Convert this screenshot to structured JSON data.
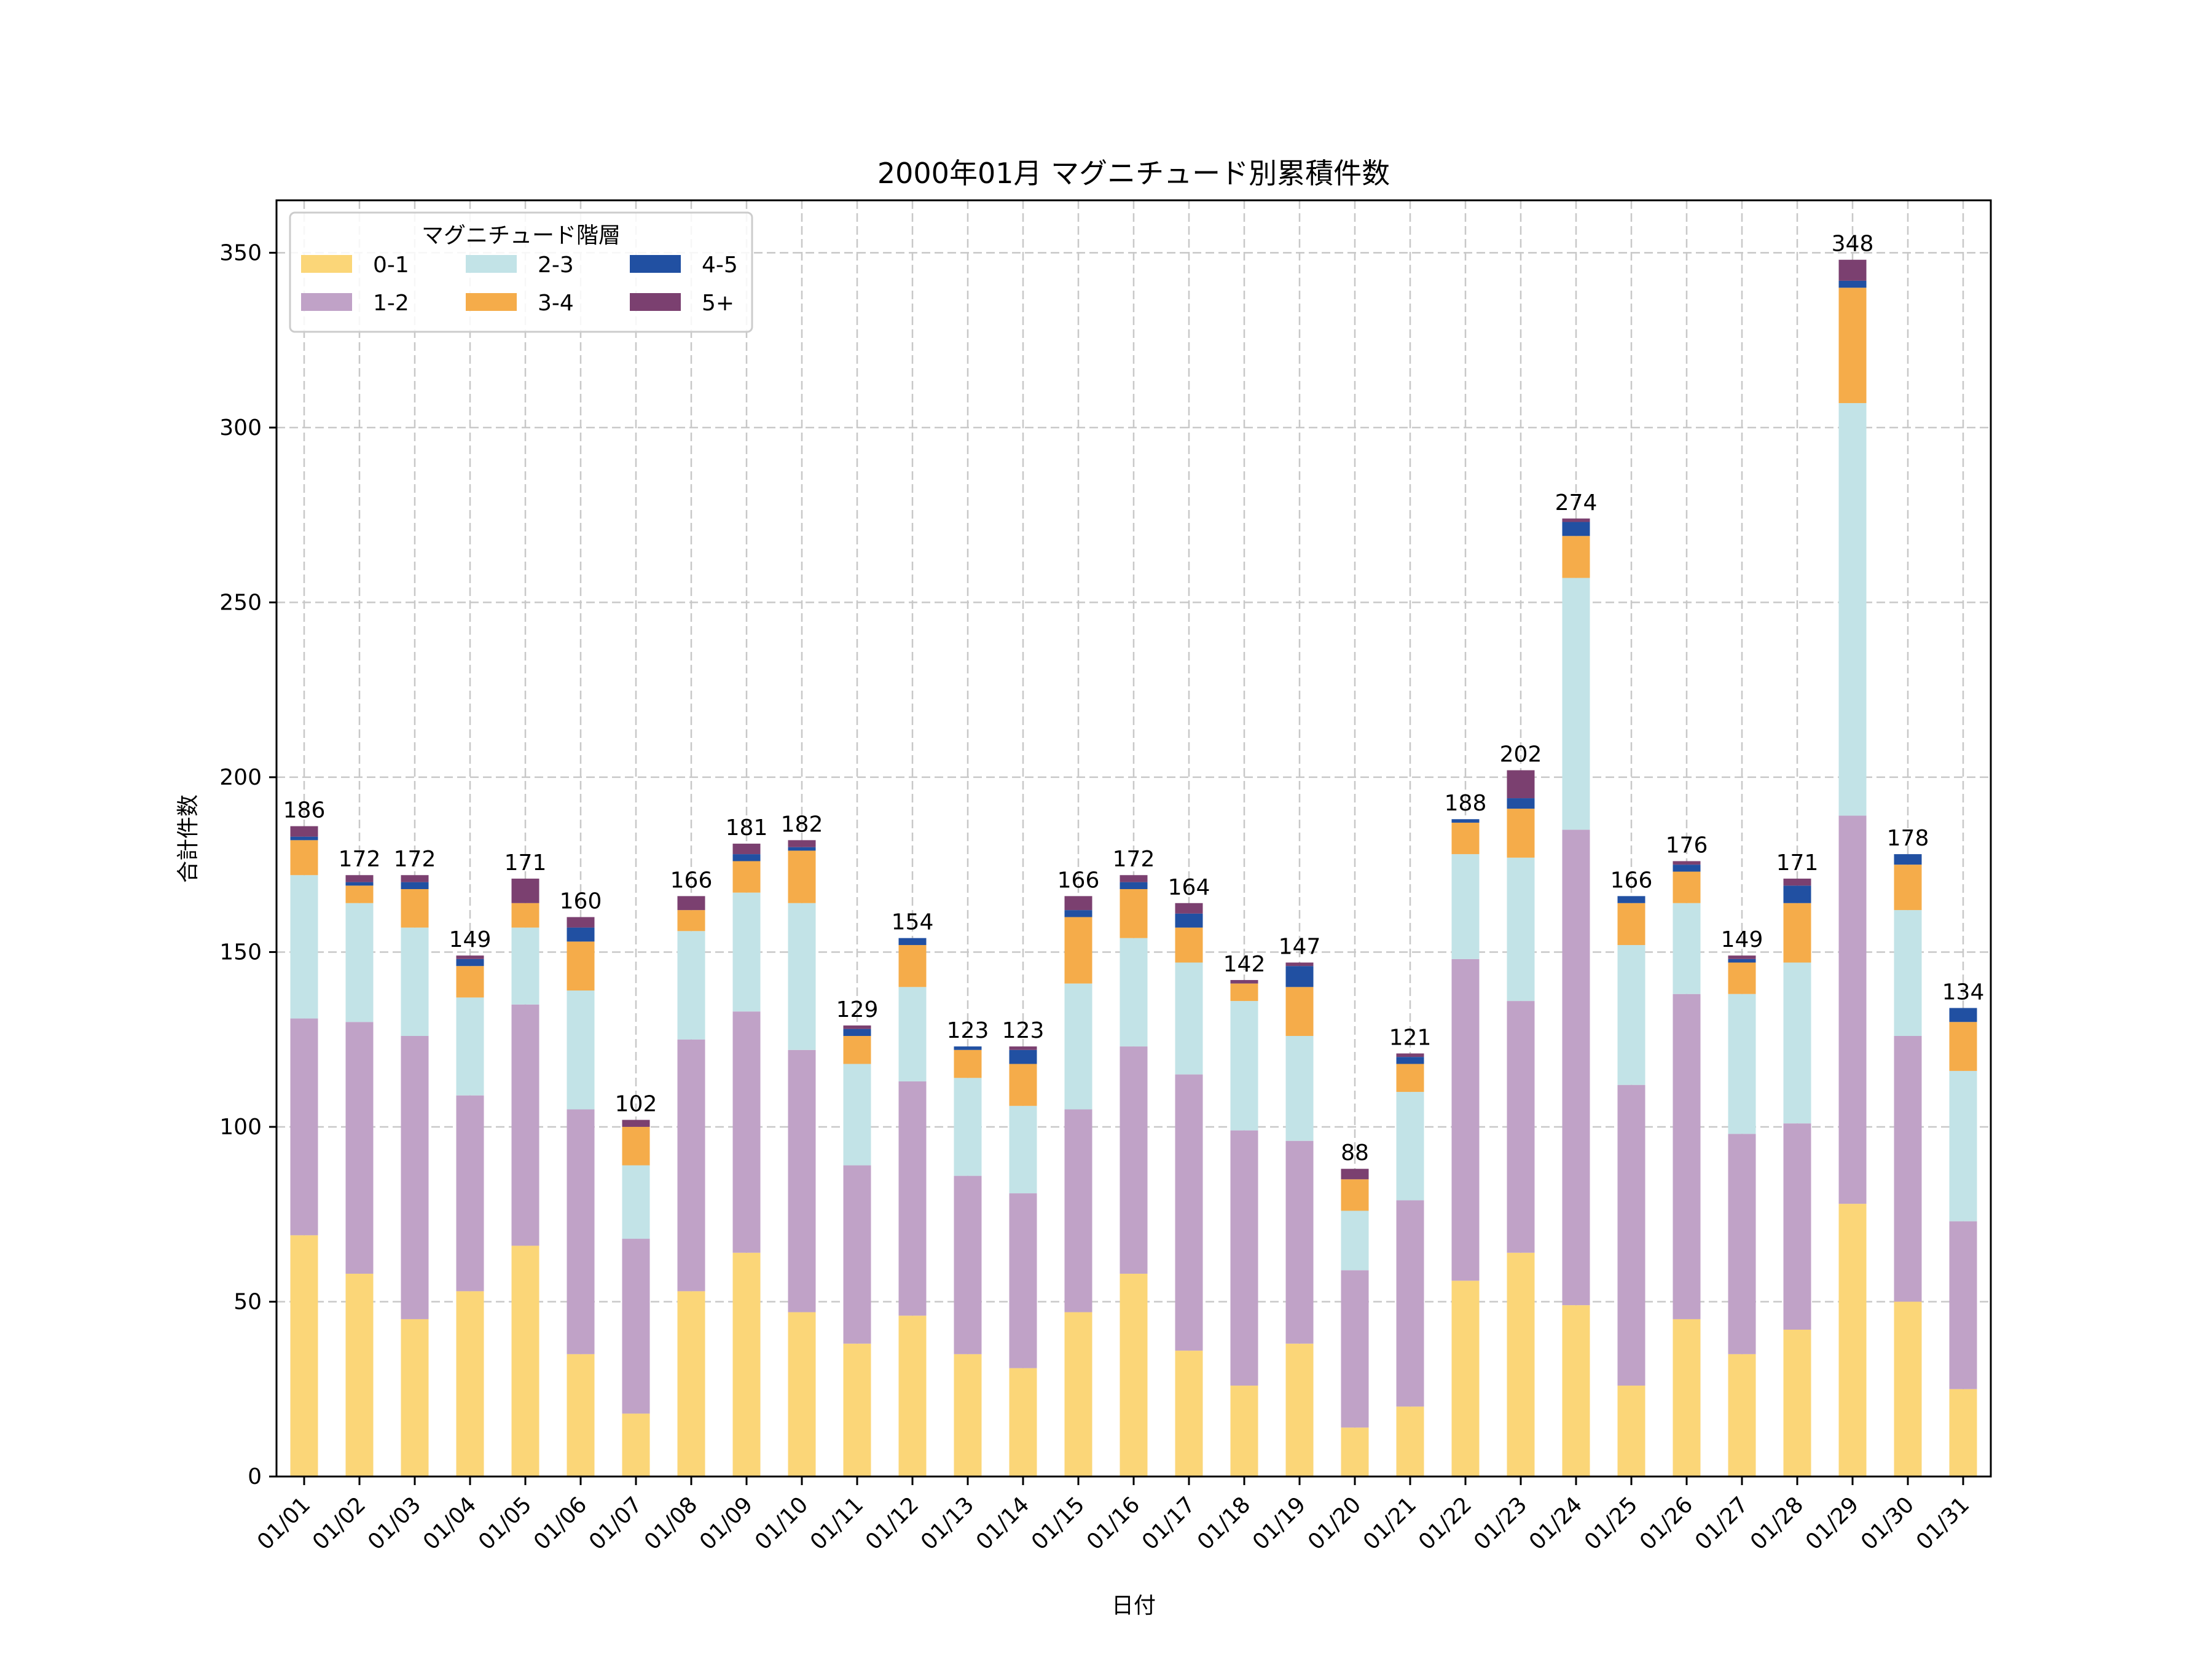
{
  "chart_data": {
    "type": "bar",
    "stacked": true,
    "title": "2000年01月 マグニチュード別累積件数",
    "xlabel": "日付",
    "ylabel": "合計件数",
    "ylim": [
      0,
      365
    ],
    "yticks": [
      0,
      50,
      100,
      150,
      200,
      250,
      300,
      350
    ],
    "grid": true,
    "legend": {
      "title": "マグニチュード階層",
      "placement": "top-left",
      "columns": 3
    },
    "categories": [
      "01/01",
      "01/02",
      "01/03",
      "01/04",
      "01/05",
      "01/06",
      "01/07",
      "01/08",
      "01/09",
      "01/10",
      "01/11",
      "01/12",
      "01/13",
      "01/14",
      "01/15",
      "01/16",
      "01/17",
      "01/18",
      "01/19",
      "01/20",
      "01/21",
      "01/22",
      "01/23",
      "01/24",
      "01/25",
      "01/26",
      "01/27",
      "01/28",
      "01/29",
      "01/30",
      "01/31"
    ],
    "series": [
      {
        "name": "0-1",
        "color": "#fbd678",
        "values": [
          69,
          58,
          45,
          53,
          66,
          35,
          18,
          53,
          64,
          47,
          38,
          46,
          35,
          31,
          47,
          58,
          36,
          26,
          38,
          14,
          20,
          56,
          64,
          49,
          26,
          45,
          35,
          42,
          78,
          50,
          25
        ]
      },
      {
        "name": "1-2",
        "color": "#c0a2c7",
        "values": [
          62,
          72,
          81,
          56,
          69,
          70,
          50,
          72,
          69,
          75,
          51,
          67,
          51,
          50,
          58,
          65,
          79,
          73,
          58,
          45,
          59,
          92,
          72,
          136,
          86,
          93,
          63,
          59,
          111,
          76,
          48
        ]
      },
      {
        "name": "2-3",
        "color": "#c2e3e7",
        "values": [
          41,
          34,
          31,
          28,
          22,
          34,
          21,
          31,
          34,
          42,
          29,
          27,
          28,
          25,
          36,
          31,
          32,
          37,
          30,
          17,
          31,
          30,
          41,
          72,
          40,
          26,
          40,
          46,
          118,
          36,
          43
        ]
      },
      {
        "name": "3-4",
        "color": "#f5ac4a",
        "values": [
          10,
          5,
          11,
          9,
          7,
          14,
          11,
          6,
          9,
          15,
          8,
          12,
          8,
          12,
          19,
          14,
          10,
          5,
          14,
          9,
          8,
          9,
          14,
          12,
          12,
          9,
          9,
          17,
          33,
          13,
          14
        ]
      },
      {
        "name": "4-5",
        "color": "#2150a2",
        "values": [
          1,
          1,
          2,
          2,
          0,
          4,
          0,
          0,
          2,
          1,
          2,
          2,
          1,
          4,
          2,
          2,
          4,
          0,
          6,
          0,
          2,
          1,
          3,
          4,
          2,
          2,
          1,
          5,
          2,
          3,
          4
        ]
      },
      {
        "name": "5+",
        "color": "#7b4070",
        "values": [
          3,
          2,
          2,
          1,
          7,
          3,
          2,
          4,
          3,
          2,
          1,
          0,
          0,
          1,
          4,
          2,
          3,
          1,
          1,
          3,
          1,
          0,
          8,
          1,
          0,
          1,
          1,
          2,
          6,
          0,
          0
        ]
      }
    ],
    "totals": [
      186,
      172,
      172,
      149,
      171,
      160,
      102,
      166,
      181,
      182,
      129,
      154,
      123,
      123,
      166,
      172,
      164,
      142,
      147,
      88,
      121,
      188,
      202,
      274,
      166,
      176,
      149,
      171,
      348,
      178,
      134
    ]
  }
}
